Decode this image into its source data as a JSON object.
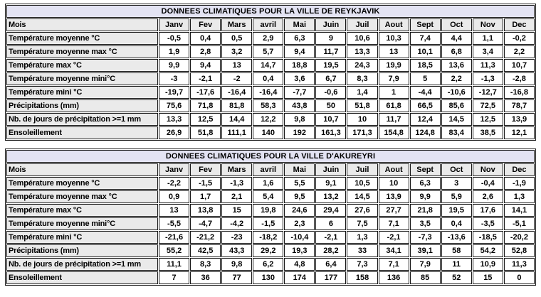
{
  "chart_data": [
    {
      "type": "table",
      "title": "DONNEES CLIMATIQUES POUR LA VILLE DE REYKJAVIK",
      "columns": [
        "Mois",
        "Janv",
        "Fev",
        "Mars",
        "avril",
        "Mai",
        "Juin",
        "Juil",
        "Aout",
        "Sept",
        "Oct",
        "Nov",
        "Dec"
      ],
      "rows": [
        {
          "label": "Température moyenne °C",
          "values": [
            "-0,5",
            "0,4",
            "0,5",
            "2,9",
            "6,3",
            "9",
            "10,6",
            "10,3",
            "7,4",
            "4,4",
            "1,1",
            "-0,2"
          ]
        },
        {
          "label": "Température moyenne max °C",
          "values": [
            "1,9",
            "2,8",
            "3,2",
            "5,7",
            "9,4",
            "11,7",
            "13,3",
            "13",
            "10,1",
            "6,8",
            "3,4",
            "2,2"
          ]
        },
        {
          "label": "Température max °C",
          "values": [
            "9,9",
            "9,4",
            "13",
            "14,7",
            "18,8",
            "19,5",
            "24,3",
            "19,9",
            "18,5",
            "13,6",
            "11,3",
            "10,7"
          ]
        },
        {
          "label": "Température moyenne mini°C",
          "values": [
            "-3",
            "-2,1",
            "-2",
            "0,4",
            "3,6",
            "6,7",
            "8,3",
            "7,9",
            "5",
            "2,2",
            "-1,3",
            "-2,8"
          ]
        },
        {
          "label": "Température mini °C",
          "values": [
            "-19,7",
            "-17,6",
            "-16,4",
            "-16,4",
            "-7,7",
            "-0,6",
            "1,4",
            "1",
            "-4,4",
            "-10,6",
            "-12,7",
            "-16,8"
          ]
        },
        {
          "label": "Précipitations (mm)",
          "values": [
            "75,6",
            "71,8",
            "81,8",
            "58,3",
            "43,8",
            "50",
            "51,8",
            "61,8",
            "66,5",
            "85,6",
            "72,5",
            "78,7"
          ]
        },
        {
          "label": "Nb. de jours de précipitation >=1 mm",
          "values": [
            "13,3",
            "12,5",
            "14,4",
            "12,2",
            "9,8",
            "10,7",
            "10",
            "11,7",
            "12,4",
            "14,5",
            "12,5",
            "13,9"
          ]
        },
        {
          "label": "Ensoleillement",
          "values": [
            "26,9",
            "51,8",
            "111,1",
            "140",
            "192",
            "161,3",
            "171,3",
            "154,8",
            "124,8",
            "83,4",
            "38,5",
            "12,1"
          ]
        }
      ]
    },
    {
      "type": "table",
      "title": "DONNEES CLIMATIQUES POUR LA VILLE D'AKUREYRI",
      "columns": [
        "Mois",
        "Janv",
        "Fev",
        "Mars",
        "avril",
        "Mai",
        "Juin",
        "Juil",
        "Aout",
        "Sept",
        "Oct",
        "Nov",
        "Dec"
      ],
      "rows": [
        {
          "label": "Température moyenne °C",
          "values": [
            "-2,2",
            "-1,5",
            "-1,3",
            "1,6",
            "5,5",
            "9,1",
            "10,5",
            "10",
            "6,3",
            "3",
            "-0,4",
            "-1,9"
          ]
        },
        {
          "label": "Température moyenne max °C",
          "values": [
            "0,9",
            "1,7",
            "2,1",
            "5,4",
            "9,5",
            "13,2",
            "14,5",
            "13,9",
            "9,9",
            "5,9",
            "2,6",
            "1,3"
          ]
        },
        {
          "label": "Température max °C",
          "values": [
            "13",
            "13,8",
            "15",
            "19,8",
            "24,6",
            "29,4",
            "27,6",
            "27,7",
            "21,8",
            "19,5",
            "17,6",
            "14,1"
          ]
        },
        {
          "label": "Température moyenne mini°C",
          "values": [
            "-5,5",
            "-4,7",
            "-4,2",
            "-1,5",
            "2,3",
            "6",
            "7,5",
            "7,1",
            "3,5",
            "0,4",
            "-3,5",
            "-5,1"
          ]
        },
        {
          "label": "Température mini °C",
          "values": [
            "-21,6",
            "-21,2",
            "-23",
            "-18,2",
            "-10,4",
            "-2,1",
            "1,3",
            "-2,1",
            "-7,3",
            "-13,6",
            "-18,5",
            "-20,2"
          ]
        },
        {
          "label": "Précipitations (mm)",
          "values": [
            "55,2",
            "42,5",
            "43,3",
            "29,2",
            "19,3",
            "28,2",
            "33",
            "34,1",
            "39,1",
            "58",
            "54,2",
            "52,8"
          ]
        },
        {
          "label": "Nb. de jours de précipitation >=1 mm",
          "values": [
            "11,1",
            "8,3",
            "9,8",
            "6,2",
            "4,8",
            "6,4",
            "7,3",
            "7,1",
            "7,9",
            "11",
            "10,9",
            "11,3"
          ]
        },
        {
          "label": "Ensoleillement",
          "values": [
            "7",
            "36",
            "77",
            "130",
            "174",
            "177",
            "158",
            "136",
            "85",
            "52",
            "15",
            "0"
          ]
        }
      ]
    }
  ],
  "colors": {
    "title_bg": "#E3E3F3",
    "header_bg": "#EAEAEA",
    "cell_bg": "#FFFFFF",
    "border": "#1A1A1A",
    "text": "#000000"
  }
}
